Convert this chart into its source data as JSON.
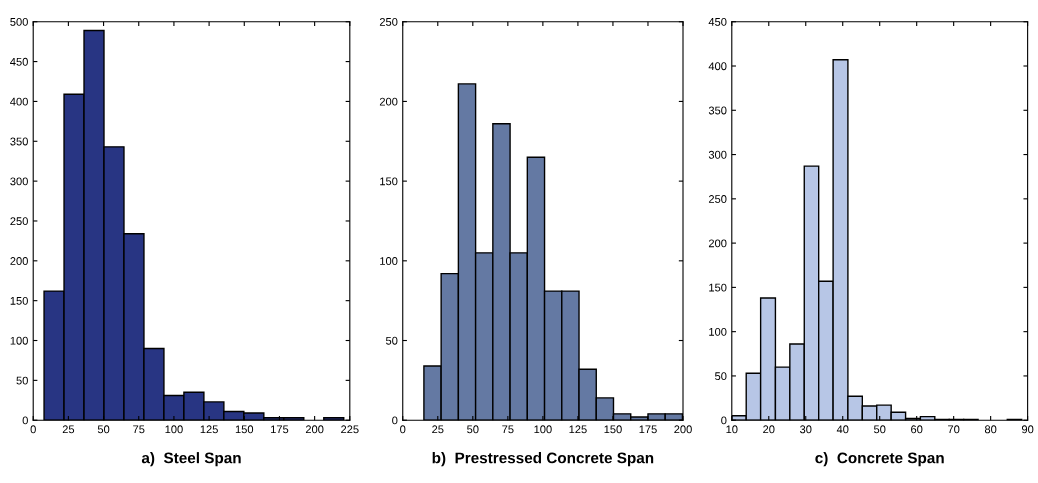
{
  "chart_data": [
    {
      "type": "histogram",
      "xlabel": "a)  Steel Span",
      "color": "#283583",
      "bins": [
        7.7,
        21.9,
        36.1,
        50.3,
        64.5,
        78.7,
        92.9,
        107.1,
        121.3,
        135.5,
        149.7,
        163.9,
        178.1,
        192.3,
        206.5,
        220.7
      ],
      "values": [
        162,
        409,
        489,
        343,
        234,
        90,
        31,
        35,
        23,
        11,
        9,
        3,
        3,
        0,
        3
      ],
      "xlim": [
        0,
        225
      ],
      "xticks": [
        0,
        25,
        50,
        75,
        100,
        125,
        150,
        175,
        200,
        225
      ],
      "ylim": [
        0,
        500
      ],
      "yticks": [
        0,
        50,
        100,
        150,
        200,
        250,
        300,
        350,
        400,
        450,
        500
      ],
      "grid": false
    },
    {
      "type": "histogram",
      "xlabel": "b)  Prestressed Concrete Span",
      "color": "#6479a3",
      "bins": [
        15.1,
        27.4,
        39.7,
        52.0,
        64.3,
        76.6,
        88.9,
        101.2,
        113.5,
        125.8,
        138.1,
        150.4,
        162.7,
        175.0,
        187.3,
        199.6
      ],
      "values": [
        34,
        92,
        211,
        105,
        186,
        105,
        165,
        81,
        81,
        32,
        14,
        4,
        2,
        4,
        4
      ],
      "xlim": [
        0,
        200
      ],
      "xticks": [
        0,
        25,
        50,
        75,
        100,
        125,
        150,
        175,
        200
      ],
      "ylim": [
        0,
        250
      ],
      "yticks": [
        0,
        50,
        100,
        150,
        200,
        250
      ],
      "grid": false
    },
    {
      "type": "histogram",
      "xlabel": "c)  Concrete Span",
      "color": "#b7c6e6",
      "bins": [
        10.0,
        13.9,
        17.8,
        21.8,
        25.7,
        29.6,
        33.5,
        37.4,
        41.4,
        45.3,
        49.2,
        53.1,
        57.0,
        61.0,
        64.9,
        68.8,
        72.7,
        76.6,
        80.6,
        84.5,
        88.4
      ],
      "values": [
        5,
        53,
        138,
        60,
        86,
        287,
        157,
        407,
        27,
        16,
        17,
        9,
        2,
        4,
        1,
        1,
        1,
        0,
        0,
        1
      ],
      "xlim": [
        10,
        90
      ],
      "xticks": [
        10,
        20,
        30,
        40,
        50,
        60,
        70,
        80,
        90
      ],
      "ylim": [
        0,
        450
      ],
      "yticks": [
        0,
        50,
        100,
        150,
        200,
        250,
        300,
        350,
        400,
        450
      ],
      "grid": false
    }
  ]
}
